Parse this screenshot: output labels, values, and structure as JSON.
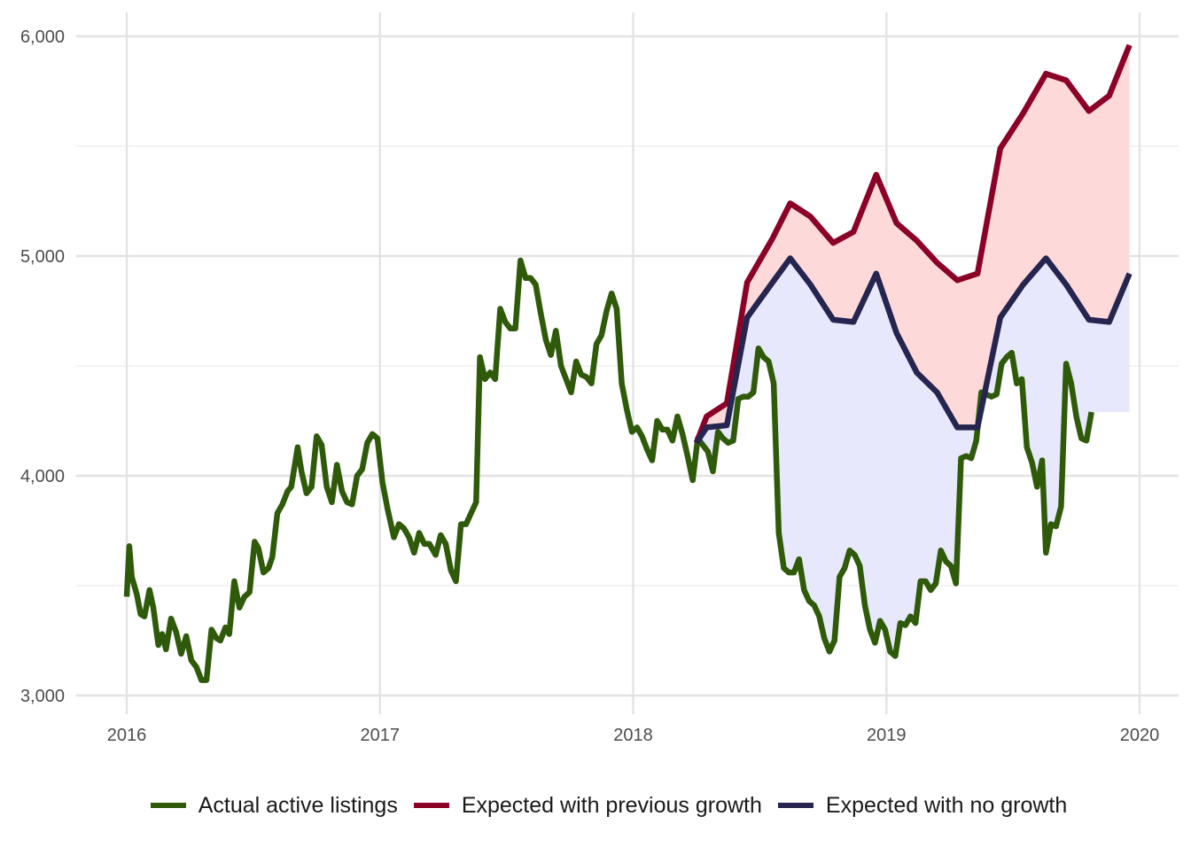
{
  "chart_data": {
    "type": "line",
    "title": "",
    "xlabel": "",
    "ylabel": "",
    "xlim": [
      2016.0,
      2020.15
    ],
    "ylim": [
      2900,
      6100
    ],
    "x_ticks": [
      2016,
      2017,
      2018,
      2019,
      2020
    ],
    "x_tick_labels": [
      "2016",
      "2017",
      "2018",
      "2019",
      "2020"
    ],
    "y_ticks": [
      3000,
      4000,
      5000,
      6000
    ],
    "y_tick_labels": [
      "3,000",
      "4,000",
      "5,000",
      "6,000"
    ],
    "y_minor_ticks": [
      3500,
      4500,
      5500
    ],
    "grid": true,
    "legend_position": "bottom",
    "colors": {
      "actual": "#2f5a0a",
      "previous": "#8b0026",
      "nogrowth": "#25254f",
      "fill_previous": "#fdd9da",
      "fill_nogrowth": "#e8e8fc"
    },
    "series": [
      {
        "name": "Actual active listings",
        "color": "#2f5a0a",
        "points": [
          [
            2016.0,
            3450
          ],
          [
            2016.01,
            3680
          ],
          [
            2016.02,
            3540
          ],
          [
            2016.04,
            3460
          ],
          [
            2016.055,
            3370
          ],
          [
            2016.07,
            3360
          ],
          [
            2016.09,
            3480
          ],
          [
            2016.105,
            3400
          ],
          [
            2016.125,
            3230
          ],
          [
            2016.14,
            3280
          ],
          [
            2016.155,
            3210
          ],
          [
            2016.175,
            3350
          ],
          [
            2016.195,
            3290
          ],
          [
            2016.215,
            3190
          ],
          [
            2016.235,
            3270
          ],
          [
            2016.255,
            3160
          ],
          [
            2016.275,
            3130
          ],
          [
            2016.295,
            3070
          ],
          [
            2016.315,
            3070
          ],
          [
            2016.335,
            3300
          ],
          [
            2016.355,
            3260
          ],
          [
            2016.37,
            3250
          ],
          [
            2016.39,
            3310
          ],
          [
            2016.405,
            3280
          ],
          [
            2016.425,
            3520
          ],
          [
            2016.445,
            3400
          ],
          [
            2016.465,
            3450
          ],
          [
            2016.485,
            3470
          ],
          [
            2016.505,
            3700
          ],
          [
            2016.52,
            3670
          ],
          [
            2016.54,
            3560
          ],
          [
            2016.56,
            3580
          ],
          [
            2016.575,
            3630
          ],
          [
            2016.595,
            3830
          ],
          [
            2016.615,
            3870
          ],
          [
            2016.635,
            3930
          ],
          [
            2016.65,
            3950
          ],
          [
            2016.675,
            4130
          ],
          [
            2016.69,
            4020
          ],
          [
            2016.71,
            3920
          ],
          [
            2016.73,
            3950
          ],
          [
            2016.75,
            4180
          ],
          [
            2016.77,
            4140
          ],
          [
            2016.79,
            3950
          ],
          [
            2016.81,
            3880
          ],
          [
            2016.83,
            4050
          ],
          [
            2016.85,
            3930
          ],
          [
            2016.87,
            3880
          ],
          [
            2016.89,
            3870
          ],
          [
            2016.91,
            4000
          ],
          [
            2016.93,
            4030
          ],
          [
            2016.95,
            4150
          ],
          [
            2016.97,
            4190
          ],
          [
            2016.99,
            4170
          ],
          [
            2017.01,
            3970
          ],
          [
            2017.03,
            3850
          ],
          [
            2017.055,
            3720
          ],
          [
            2017.075,
            3780
          ],
          [
            2017.095,
            3760
          ],
          [
            2017.115,
            3720
          ],
          [
            2017.135,
            3650
          ],
          [
            2017.155,
            3740
          ],
          [
            2017.175,
            3690
          ],
          [
            2017.195,
            3690
          ],
          [
            2017.22,
            3640
          ],
          [
            2017.24,
            3730
          ],
          [
            2017.26,
            3690
          ],
          [
            2017.28,
            3570
          ],
          [
            2017.3,
            3520
          ],
          [
            2017.32,
            3780
          ],
          [
            2017.34,
            3780
          ],
          [
            2017.36,
            3830
          ],
          [
            2017.38,
            3880
          ],
          [
            2017.395,
            4540
          ],
          [
            2017.415,
            4440
          ],
          [
            2017.435,
            4470
          ],
          [
            2017.455,
            4440
          ],
          [
            2017.475,
            4760
          ],
          [
            2017.495,
            4700
          ],
          [
            2017.515,
            4670
          ],
          [
            2017.535,
            4670
          ],
          [
            2017.555,
            4980
          ],
          [
            2017.575,
            4900
          ],
          [
            2017.595,
            4900
          ],
          [
            2017.615,
            4870
          ],
          [
            2017.635,
            4740
          ],
          [
            2017.655,
            4620
          ],
          [
            2017.675,
            4550
          ],
          [
            2017.695,
            4660
          ],
          [
            2017.715,
            4500
          ],
          [
            2017.735,
            4440
          ],
          [
            2017.755,
            4380
          ],
          [
            2017.775,
            4520
          ],
          [
            2017.795,
            4460
          ],
          [
            2017.815,
            4450
          ],
          [
            2017.835,
            4420
          ],
          [
            2017.855,
            4600
          ],
          [
            2017.875,
            4640
          ],
          [
            2017.895,
            4750
          ],
          [
            2017.915,
            4830
          ],
          [
            2017.935,
            4760
          ],
          [
            2017.955,
            4420
          ],
          [
            2017.975,
            4300
          ],
          [
            2017.995,
            4200
          ],
          [
            2018.015,
            4220
          ],
          [
            2018.035,
            4180
          ],
          [
            2018.055,
            4120
          ],
          [
            2018.075,
            4070
          ],
          [
            2018.095,
            4250
          ],
          [
            2018.115,
            4210
          ],
          [
            2018.135,
            4210
          ],
          [
            2018.155,
            4160
          ],
          [
            2018.175,
            4270
          ],
          [
            2018.195,
            4190
          ],
          [
            2018.215,
            4090
          ],
          [
            2018.235,
            3980
          ],
          [
            2018.255,
            4170
          ],
          [
            2018.275,
            4140
          ],
          [
            2018.295,
            4110
          ],
          [
            2018.315,
            4020
          ],
          [
            2018.335,
            4200
          ],
          [
            2018.355,
            4170
          ],
          [
            2018.375,
            4150
          ],
          [
            2018.395,
            4160
          ],
          [
            2018.415,
            4350
          ],
          [
            2018.435,
            4360
          ],
          [
            2018.455,
            4360
          ],
          [
            2018.475,
            4380
          ],
          [
            2018.495,
            4580
          ],
          [
            2018.515,
            4540
          ],
          [
            2018.535,
            4520
          ],
          [
            2018.555,
            4420
          ],
          [
            2018.575,
            3740
          ],
          [
            2018.595,
            3580
          ],
          [
            2018.615,
            3560
          ],
          [
            2018.635,
            3560
          ],
          [
            2018.655,
            3620
          ],
          [
            2018.675,
            3480
          ],
          [
            2018.695,
            3430
          ],
          [
            2018.715,
            3410
          ],
          [
            2018.735,
            3360
          ],
          [
            2018.755,
            3260
          ],
          [
            2018.775,
            3200
          ],
          [
            2018.795,
            3250
          ],
          [
            2018.815,
            3540
          ],
          [
            2018.835,
            3580
          ],
          [
            2018.855,
            3660
          ],
          [
            2018.875,
            3640
          ],
          [
            2018.895,
            3590
          ],
          [
            2018.915,
            3410
          ],
          [
            2018.935,
            3300
          ],
          [
            2018.955,
            3240
          ],
          [
            2018.975,
            3340
          ],
          [
            2018.995,
            3300
          ],
          [
            2019.015,
            3200
          ],
          [
            2019.035,
            3180
          ],
          [
            2019.055,
            3330
          ],
          [
            2019.075,
            3320
          ],
          [
            2019.095,
            3360
          ],
          [
            2019.115,
            3330
          ],
          [
            2019.135,
            3520
          ],
          [
            2019.155,
            3520
          ],
          [
            2019.175,
            3480
          ],
          [
            2019.195,
            3510
          ],
          [
            2019.215,
            3660
          ],
          [
            2019.235,
            3610
          ],
          [
            2019.255,
            3590
          ],
          [
            2019.275,
            3510
          ],
          [
            2019.295,
            4080
          ],
          [
            2019.315,
            4090
          ],
          [
            2019.335,
            4080
          ],
          [
            2019.355,
            4160
          ],
          [
            2019.375,
            4380
          ],
          [
            2019.395,
            4370
          ],
          [
            2019.415,
            4360
          ],
          [
            2019.435,
            4370
          ],
          [
            2019.455,
            4510
          ],
          [
            2019.475,
            4540
          ],
          [
            2019.495,
            4560
          ],
          [
            2019.515,
            4420
          ],
          [
            2019.535,
            4440
          ],
          [
            2019.555,
            4130
          ],
          [
            2019.575,
            4060
          ],
          [
            2019.595,
            3950
          ],
          [
            2019.615,
            4070
          ],
          [
            2019.63,
            3650
          ],
          [
            2019.65,
            3780
          ],
          [
            2019.67,
            3770
          ],
          [
            2019.69,
            3860
          ],
          [
            2019.71,
            4510
          ],
          [
            2019.73,
            4420
          ],
          [
            2019.75,
            4270
          ],
          [
            2019.77,
            4170
          ],
          [
            2019.79,
            4160
          ],
          [
            2019.81,
            4290
          ]
        ]
      },
      {
        "name": "Expected with previous growth",
        "color": "#8b0026",
        "points": [
          [
            2018.25,
            4150
          ],
          [
            2018.29,
            4270
          ],
          [
            2018.37,
            4330
          ],
          [
            2018.45,
            4880
          ],
          [
            2018.55,
            5080
          ],
          [
            2018.62,
            5240
          ],
          [
            2018.7,
            5180
          ],
          [
            2018.79,
            5060
          ],
          [
            2018.87,
            5110
          ],
          [
            2018.96,
            5370
          ],
          [
            2019.04,
            5150
          ],
          [
            2019.12,
            5070
          ],
          [
            2019.2,
            4970
          ],
          [
            2019.28,
            4890
          ],
          [
            2019.36,
            4920
          ],
          [
            2019.45,
            5490
          ],
          [
            2019.54,
            5650
          ],
          [
            2019.63,
            5830
          ],
          [
            2019.71,
            5800
          ],
          [
            2019.8,
            5660
          ],
          [
            2019.88,
            5730
          ],
          [
            2019.96,
            5960
          ]
        ]
      },
      {
        "name": "Expected with no growth",
        "color": "#25254f",
        "points": [
          [
            2018.25,
            4150
          ],
          [
            2018.29,
            4220
          ],
          [
            2018.37,
            4230
          ],
          [
            2018.45,
            4720
          ],
          [
            2018.55,
            4880
          ],
          [
            2018.62,
            4990
          ],
          [
            2018.7,
            4870
          ],
          [
            2018.79,
            4710
          ],
          [
            2018.87,
            4700
          ],
          [
            2018.96,
            4920
          ],
          [
            2019.04,
            4650
          ],
          [
            2019.12,
            4470
          ],
          [
            2019.2,
            4380
          ],
          [
            2019.28,
            4220
          ],
          [
            2019.36,
            4220
          ],
          [
            2019.45,
            4720
          ],
          [
            2019.54,
            4870
          ],
          [
            2019.63,
            4990
          ],
          [
            2019.71,
            4870
          ],
          [
            2019.8,
            4710
          ],
          [
            2019.88,
            4700
          ],
          [
            2019.96,
            4920
          ]
        ]
      }
    ]
  }
}
